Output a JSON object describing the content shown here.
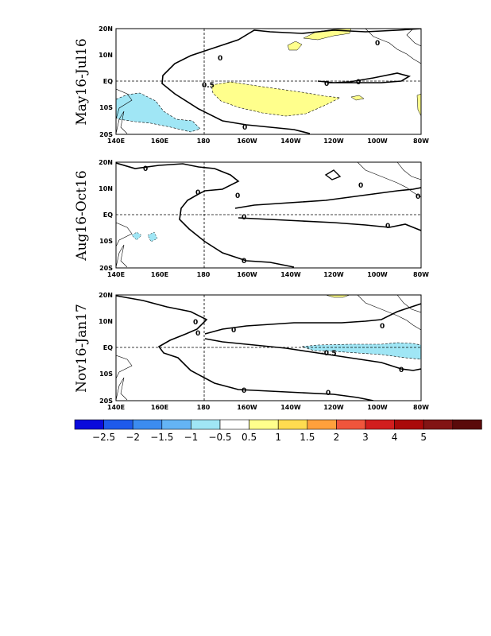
{
  "panels": [
    {
      "label": "May16-Jul16",
      "label_0": "0",
      "label_neg": "0.5"
    },
    {
      "label": "Aug16-Oct16",
      "label_0": "0"
    },
    {
      "label": "Nov16-Jan17",
      "label_0": "0",
      "label_neg": "-0.5"
    }
  ],
  "lat_ticks": [
    "20N",
    "10N",
    "EQ",
    "10S",
    "20S"
  ],
  "lon_ticks": [
    "140E",
    "160E",
    "180",
    "160W",
    "140W",
    "120W",
    "100W",
    "80W"
  ],
  "colorbar": {
    "colors": [
      "#0a0adc",
      "#1e5aeb",
      "#3c8cf0",
      "#64b4f5",
      "#a0e6f5",
      "#ffffff",
      "#ffff8c",
      "#ffdc50",
      "#ffa03c",
      "#f0553c",
      "#d21e1e",
      "#aa0a0a",
      "#821414",
      "#5a0a0a"
    ],
    "labels": [
      "-2.5",
      "-2",
      "-1.5",
      "-1",
      "-0.5",
      "0.5",
      "1",
      "1.5",
      "2",
      "3",
      "4",
      "5"
    ]
  }
}
